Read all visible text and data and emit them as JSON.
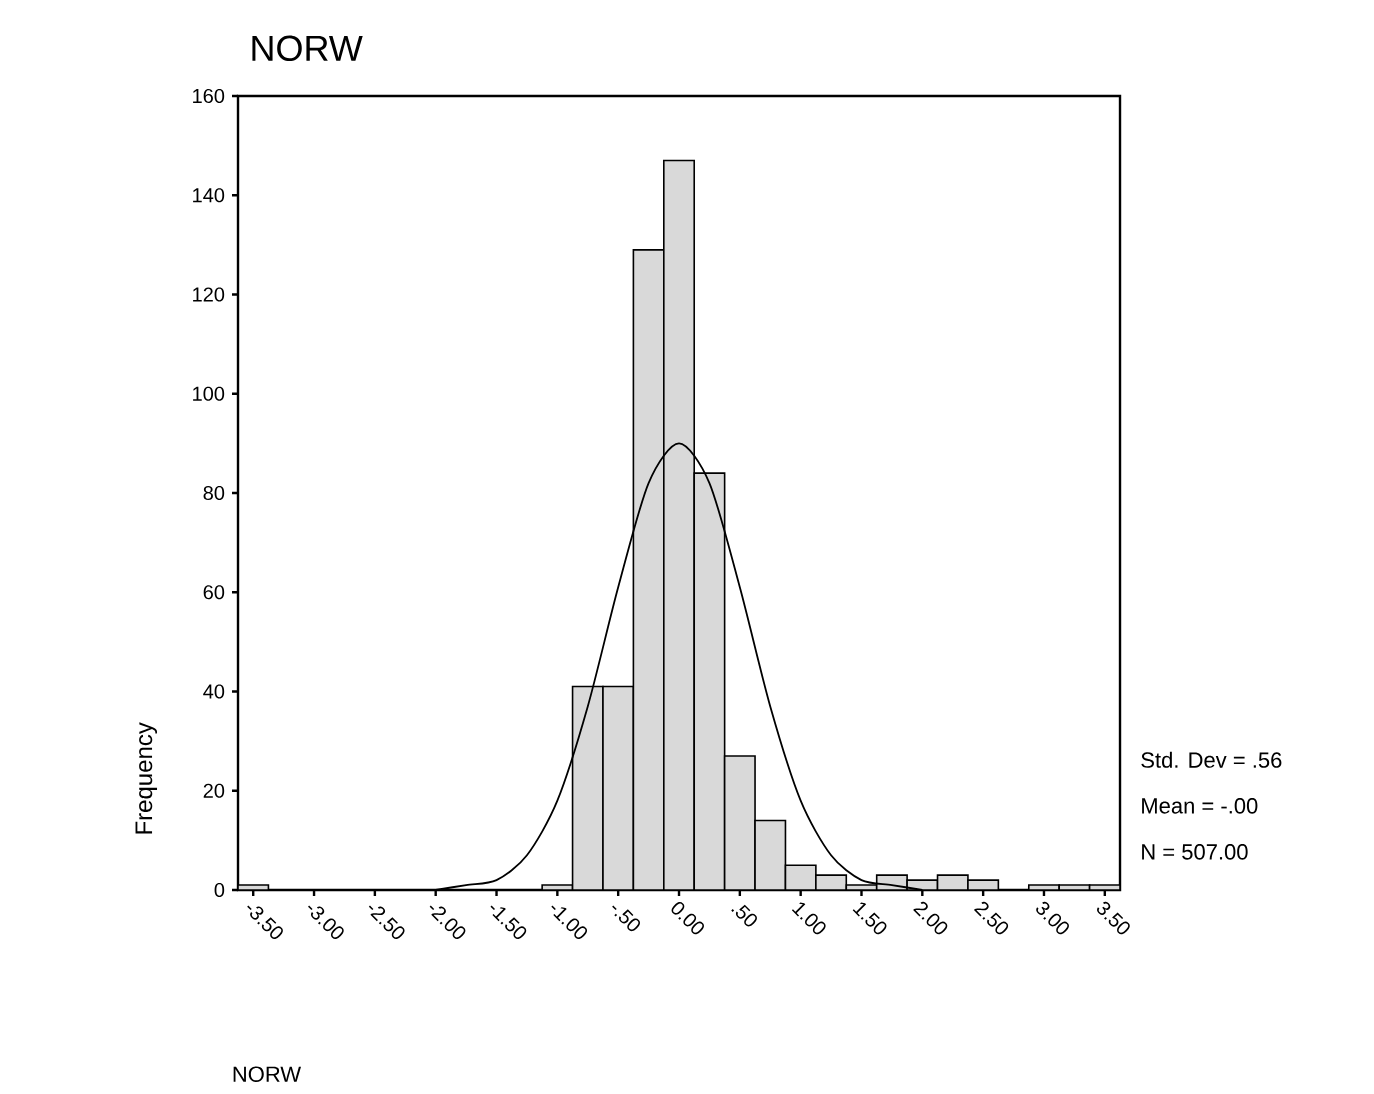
{
  "chart_data": {
    "type": "histogram",
    "title": "NORW",
    "ylabel": "Frequency",
    "annotations": [
      "Std. Dev = .56",
      "Mean = -.00",
      "N = 507.00",
      "NORW"
    ],
    "series": [
      {
        "type": "histogram",
        "color": "#d9d9d9",
        "bins": [
          -3.625,
          -3.375,
          -3.125,
          -2.875,
          -2.625,
          -2.375,
          -2.125,
          -1.875,
          -1.625,
          -1.375,
          -1.125,
          -0.875,
          -0.625,
          -0.375,
          -0.125,
          0.125,
          0.375,
          0.625,
          0.875,
          1.125,
          1.375,
          1.625,
          1.875,
          2.125,
          2.375,
          2.625,
          2.875,
          3.125,
          3.375,
          3.625
        ],
        "values": [
          1,
          0,
          0,
          0,
          0,
          0,
          0,
          0,
          0,
          0,
          1,
          41,
          41,
          129,
          147,
          84,
          27,
          14,
          5,
          3,
          1,
          3,
          2,
          3,
          2,
          0,
          1,
          1,
          1
        ]
      },
      {
        "type": "line",
        "color": "#000000",
        "x": [
          -2.0,
          -1.75,
          -1.5,
          -1.25,
          -1.0,
          -0.75,
          -0.5,
          -0.25,
          0.0,
          0.25,
          0.5,
          0.75,
          1.0,
          1.25,
          1.5,
          1.75,
          2.0
        ],
        "values": [
          0,
          1,
          2,
          7,
          18,
          37,
          61,
          82,
          90,
          82,
          61,
          37,
          18,
          7,
          2,
          1,
          0
        ]
      }
    ],
    "xlim": [
      -3.625,
      3.625
    ],
    "ylim": [
      0,
      160
    ],
    "xticks": [
      {
        "value": -3.5,
        "label": "-3.50"
      },
      {
        "value": -3.0,
        "label": "-3.00"
      },
      {
        "value": -2.5,
        "label": "-2.50"
      },
      {
        "value": -2.0,
        "label": "-2.00"
      },
      {
        "value": -1.5,
        "label": "-1.50"
      },
      {
        "value": -1.0,
        "label": "-1.00"
      },
      {
        "value": -0.5,
        "label": "-.50"
      },
      {
        "value": 0.0,
        "label": "0.00"
      },
      {
        "value": 0.5,
        "label": ".50"
      },
      {
        "value": 1.0,
        "label": "1.00"
      },
      {
        "value": 1.5,
        "label": "1.50"
      },
      {
        "value": 2.0,
        "label": "2.00"
      },
      {
        "value": 2.5,
        "label": "2.50"
      },
      {
        "value": 3.0,
        "label": "3.00"
      },
      {
        "value": 3.5,
        "label": "3.50"
      }
    ],
    "yticks": [
      0,
      20,
      40,
      60,
      80,
      100,
      120,
      140,
      160
    ]
  }
}
